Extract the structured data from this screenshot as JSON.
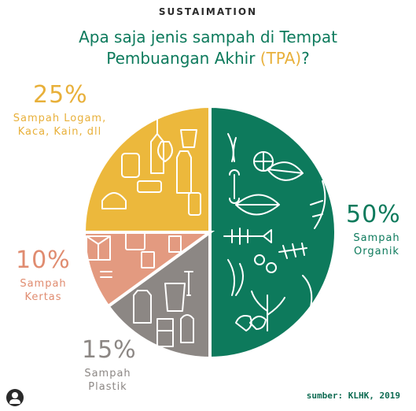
{
  "brand": "SUSTAIMATION",
  "title_line1": "Apa saja jenis sampah di Tempat",
  "title_line2_pre": "Pembuangan Akhir ",
  "title_line2_hl": "(TPA)",
  "title_line2_post": "?",
  "source": "sumber: KLHK, 2019",
  "colors": {
    "organik": "#0d7a5c",
    "logam": "#ecb83c",
    "kertas": "#e39a80",
    "plastik": "#8c8784",
    "title": "#0d7a5c",
    "highlight": "#e8b03a"
  },
  "chart_data": {
    "type": "pie",
    "start_angle_deg": 0,
    "direction": "clockwise",
    "slices": [
      {
        "pct_label": "50%",
        "value": 50,
        "label_line1": "Sampah",
        "label_line2": "Organik",
        "color": "#0d7a5c",
        "icon_name": "organic-waste-icons"
      },
      {
        "pct_label": "15%",
        "value": 15,
        "label_line1": "Sampah",
        "label_line2": "Plastik",
        "color": "#8c8784",
        "icon_name": "plastic-waste-icons"
      },
      {
        "pct_label": "10%",
        "value": 10,
        "label_line1": "Sampah",
        "label_line2": "Kertas",
        "color": "#e39a80",
        "icon_name": "paper-waste-icons"
      },
      {
        "pct_label": "25%",
        "value": 25,
        "label_line1": "Sampah Logam,",
        "label_line2": "Kaca, Kain, dll",
        "color": "#ecb83c",
        "icon_name": "metal-glass-waste-icons"
      }
    ]
  }
}
